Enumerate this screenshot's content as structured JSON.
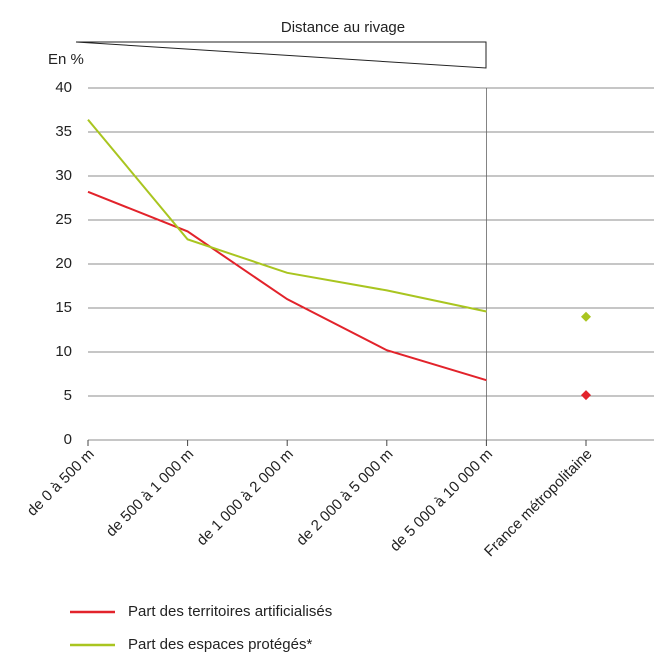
{
  "chart_data": {
    "type": "line",
    "header": "Distance au rivage",
    "y_label": "En %",
    "categories": [
      "de 0 à 500 m",
      "de 500 à 1 000 m",
      "de 1 000 à 2 000 m",
      "de 2 000 à 5 000 m",
      "de 5 000 à 10 000 m",
      "France métropolitaine"
    ],
    "series": [
      {
        "name": "Part des territoires artificialisés",
        "color": "#e2232b",
        "values": [
          28.2,
          23.7,
          16,
          10.2,
          6.8,
          5.1
        ]
      },
      {
        "name": "Part des espaces protégés*",
        "color": "#a9c520",
        "values": [
          36.4,
          22.8,
          19,
          17,
          14.6,
          14
        ]
      }
    ],
    "ylim": [
      0,
      40
    ],
    "yticks": [
      0,
      5,
      10,
      15,
      20,
      25,
      30,
      35,
      40
    ],
    "grid": true
  }
}
